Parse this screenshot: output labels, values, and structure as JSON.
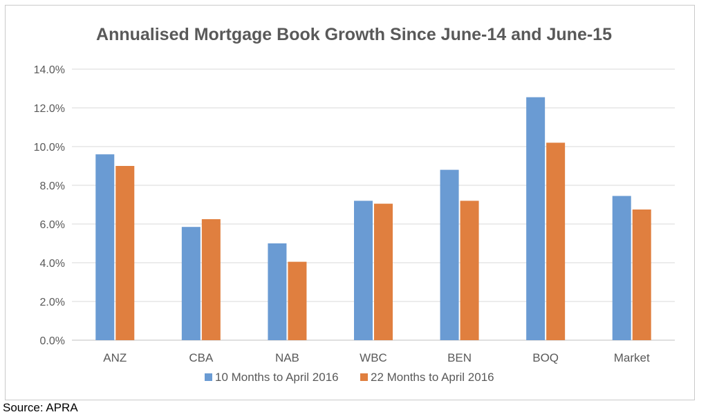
{
  "chart_data": {
    "type": "bar",
    "title": "Annualised Mortgage Book Growth  Since June-14 and June-15",
    "xlabel": "",
    "ylabel": "",
    "categories": [
      "ANZ",
      "CBA",
      "NAB",
      "WBC",
      "BEN",
      "BOQ",
      "Market"
    ],
    "series": [
      {
        "name": "10 Months to April 2016",
        "color": "#6a9bd3",
        "values": [
          9.6,
          5.85,
          5.0,
          7.2,
          8.8,
          12.55,
          7.45
        ]
      },
      {
        "name": "22 Months to April 2016",
        "color": "#e07f3f",
        "values": [
          9.0,
          6.25,
          4.05,
          7.05,
          7.2,
          10.2,
          6.75
        ]
      }
    ],
    "ylim": [
      0,
      14
    ],
    "y_ticks": [
      "0.0%",
      "2.0%",
      "4.0%",
      "6.0%",
      "8.0%",
      "10.0%",
      "12.0%",
      "14.0%"
    ],
    "grid": true,
    "legend_position": "bottom"
  },
  "source_note": "Source: APRA"
}
